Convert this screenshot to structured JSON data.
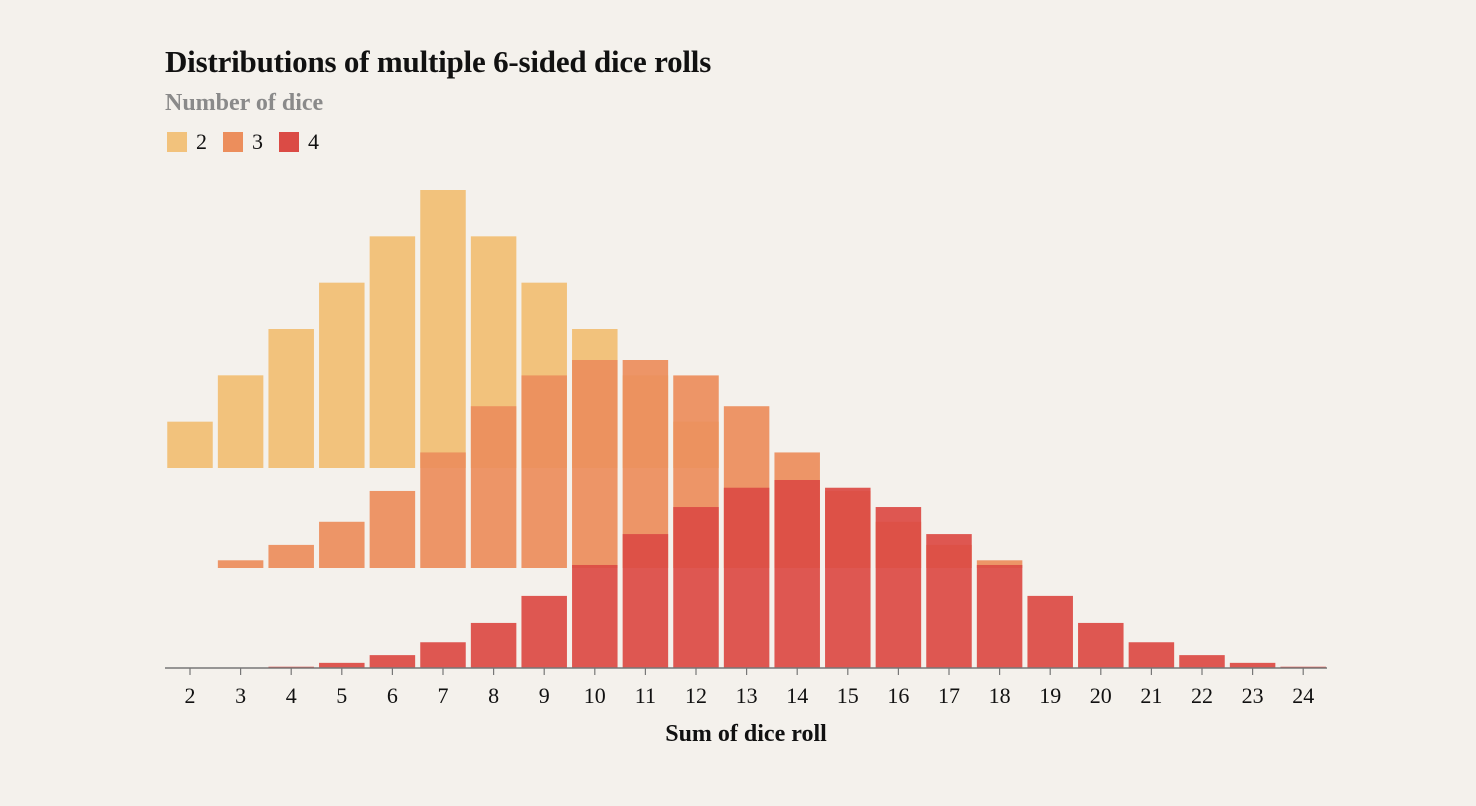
{
  "chart_data": {
    "type": "bar",
    "title": "Distributions of multiple 6-sided dice rolls",
    "legend_title": "Number of dice",
    "legend_placement": "top-left",
    "xlabel": "Sum of dice roll",
    "ylabel": "",
    "grid": false,
    "x": [
      2,
      3,
      4,
      5,
      6,
      7,
      8,
      9,
      10,
      11,
      12,
      13,
      14,
      15,
      16,
      17,
      18,
      19,
      20,
      21,
      22,
      23,
      24
    ],
    "series": [
      {
        "name": "2",
        "color": "#f2c27c",
        "values": [
          1,
          2,
          3,
          4,
          5,
          6,
          5,
          4,
          3,
          2,
          1,
          0,
          0,
          0,
          0,
          0,
          0,
          0,
          0,
          0,
          0,
          0,
          0
        ]
      },
      {
        "name": "3",
        "color": "#ec8e5c",
        "values": [
          0,
          1,
          3,
          6,
          10,
          15,
          21,
          25,
          27,
          27,
          25,
          21,
          15,
          10,
          6,
          3,
          1,
          0,
          0,
          0,
          0,
          0,
          0
        ]
      },
      {
        "name": "4",
        "color": "#db4b45",
        "values": [
          0,
          0,
          1,
          4,
          10,
          20,
          35,
          56,
          80,
          104,
          125,
          140,
          146,
          140,
          125,
          104,
          80,
          56,
          35,
          20,
          10,
          4,
          1
        ]
      }
    ]
  }
}
